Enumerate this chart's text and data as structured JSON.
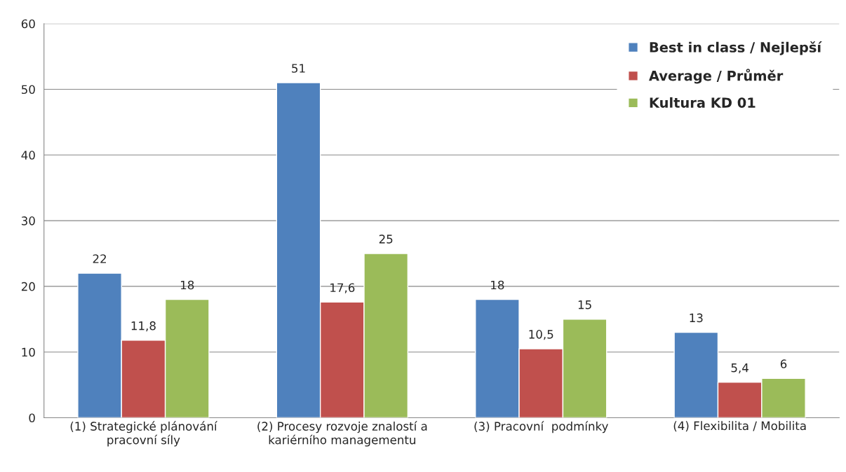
{
  "chart_data": {
    "type": "bar",
    "categories": [
      "(1) Strategické plánování\npracovní síly",
      "(2) Procesy rozvoje znalostí a\nkariérního managementu",
      "(3) Pracovní  podmínky",
      "(4) Flexibilita / Mobilita"
    ],
    "series": [
      {
        "name": "Best in class / Nejlepší",
        "color": "#4f81bd",
        "values": [
          22,
          51,
          18,
          13
        ],
        "value_labels": [
          "22",
          "51",
          "18",
          "13"
        ]
      },
      {
        "name": "Average / Průměr",
        "color": "#c0504d",
        "values": [
          11.8,
          17.6,
          10.5,
          5.4
        ],
        "value_labels": [
          "11,8",
          "17,6",
          "10,5",
          "5,4"
        ]
      },
      {
        "name": "Kultura KD 01",
        "color": "#9bbb59",
        "values": [
          18,
          25,
          15,
          6
        ],
        "value_labels": [
          "18",
          "25",
          "15",
          "6"
        ]
      }
    ],
    "ylim": [
      0,
      60
    ],
    "yticks": [
      0,
      10,
      20,
      30,
      40,
      50,
      60
    ],
    "grid": "y",
    "legend": "top right"
  }
}
